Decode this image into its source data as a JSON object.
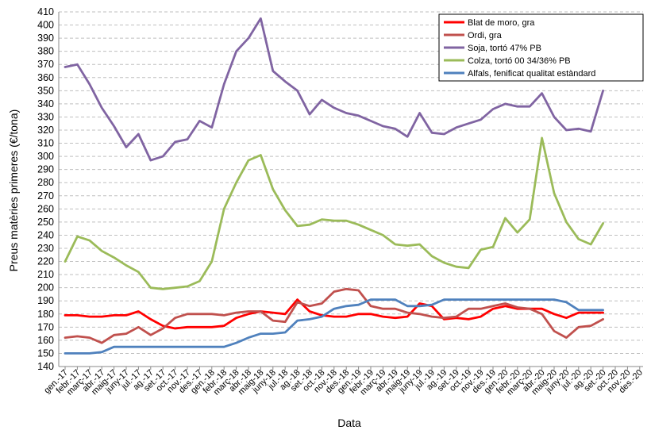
{
  "chart_data": {
    "type": "line",
    "x_label": "Data",
    "y_label": "Preus matèries primeres (€/tona)",
    "categories": [
      "gen.-17",
      "febr.-17",
      "març-17",
      "abr.-17",
      "maig-17",
      "juny-17",
      "jul.-17",
      "ag.-17",
      "set.-17",
      "oct.-17",
      "nov.-17",
      "des.-17",
      "gen.-18",
      "febr.-18",
      "març-18",
      "abr.-18",
      "maig-18",
      "juny-18",
      "jul.-18",
      "ag.-18",
      "set.-18",
      "oct.-18",
      "nov.-18",
      "des.-18",
      "gen.-19",
      "febr.-19",
      "març-19",
      "abr.-19",
      "maig-19",
      "juny-19",
      "jul.-19",
      "ag.-19",
      "set.-19",
      "oct.-19",
      "nov.-19",
      "des.-19",
      "gen.-20",
      "febr.-20",
      "març-20",
      "abr.-20",
      "maig-20",
      "juny-20",
      "jul.-20",
      "ag.-20",
      "set.-20",
      "oct.-20",
      "nov.-20",
      "des.-20"
    ],
    "series": [
      {
        "name": "Blat de moro, gra",
        "color": "#ff0000",
        "values": [
          179,
          179,
          178,
          178,
          179,
          179,
          182,
          176,
          171,
          169,
          170,
          170,
          170,
          171,
          177,
          180,
          182,
          181,
          180,
          191,
          182,
          179,
          178,
          178,
          180,
          180,
          178,
          177,
          178,
          188,
          186,
          176,
          177,
          176,
          178,
          184,
          186,
          184,
          184,
          184,
          180,
          177,
          181,
          181,
          181,
          null,
          null,
          null
        ]
      },
      {
        "name": "Ordi, gra",
        "color": "#c0504d",
        "values": [
          162,
          163,
          162,
          158,
          164,
          165,
          170,
          164,
          169,
          177,
          180,
          180,
          180,
          179,
          181,
          182,
          182,
          175,
          174,
          189,
          186,
          188,
          197,
          199,
          198,
          186,
          184,
          184,
          181,
          180,
          178,
          177,
          178,
          184,
          184,
          186,
          188,
          185,
          184,
          180,
          167,
          162,
          170,
          171,
          176,
          null,
          null,
          null
        ]
      },
      {
        "name": "Soja, tortó 47% PB",
        "color": "#8064a2",
        "values": [
          368,
          370,
          355,
          337,
          323,
          307,
          317,
          297,
          300,
          311,
          313,
          327,
          322,
          355,
          380,
          390,
          405,
          365,
          357,
          350,
          332,
          343,
          337,
          333,
          331,
          327,
          323,
          321,
          315,
          333,
          318,
          317,
          322,
          325,
          328,
          336,
          340,
          338,
          338,
          348,
          330,
          320,
          321,
          319,
          350,
          null,
          null,
          null
        ]
      },
      {
        "name": "Colza, tortó 00 34/36% PB",
        "color": "#9bbb59",
        "values": [
          220,
          239,
          236,
          228,
          223,
          217,
          212,
          200,
          199,
          200,
          201,
          205,
          220,
          260,
          280,
          297,
          301,
          275,
          259,
          247,
          248,
          252,
          251,
          251,
          248,
          244,
          240,
          233,
          232,
          233,
          224,
          219,
          216,
          215,
          229,
          231,
          253,
          242,
          252,
          314,
          272,
          250,
          237,
          233,
          249,
          null,
          null,
          null
        ]
      },
      {
        "name": "Alfals, fenificat qualitat estàndard",
        "color": "#4f81bd",
        "values": [
          150,
          150,
          150,
          151,
          155,
          155,
          155,
          155,
          155,
          155,
          155,
          155,
          155,
          155,
          158,
          162,
          165,
          165,
          166,
          175,
          176,
          178,
          184,
          186,
          187,
          191,
          191,
          191,
          186,
          186,
          187,
          191,
          191,
          191,
          191,
          191,
          191,
          191,
          191,
          191,
          191,
          189,
          183,
          183,
          183,
          null,
          null,
          null
        ]
      }
    ],
    "ylim": [
      140,
      410
    ],
    "yticks": [
      140,
      150,
      160,
      170,
      180,
      190,
      200,
      210,
      220,
      230,
      240,
      250,
      260,
      270,
      280,
      290,
      300,
      310,
      320,
      330,
      340,
      350,
      360,
      370,
      380,
      390,
      400,
      410
    ],
    "grid": true,
    "legend": "top-right"
  }
}
